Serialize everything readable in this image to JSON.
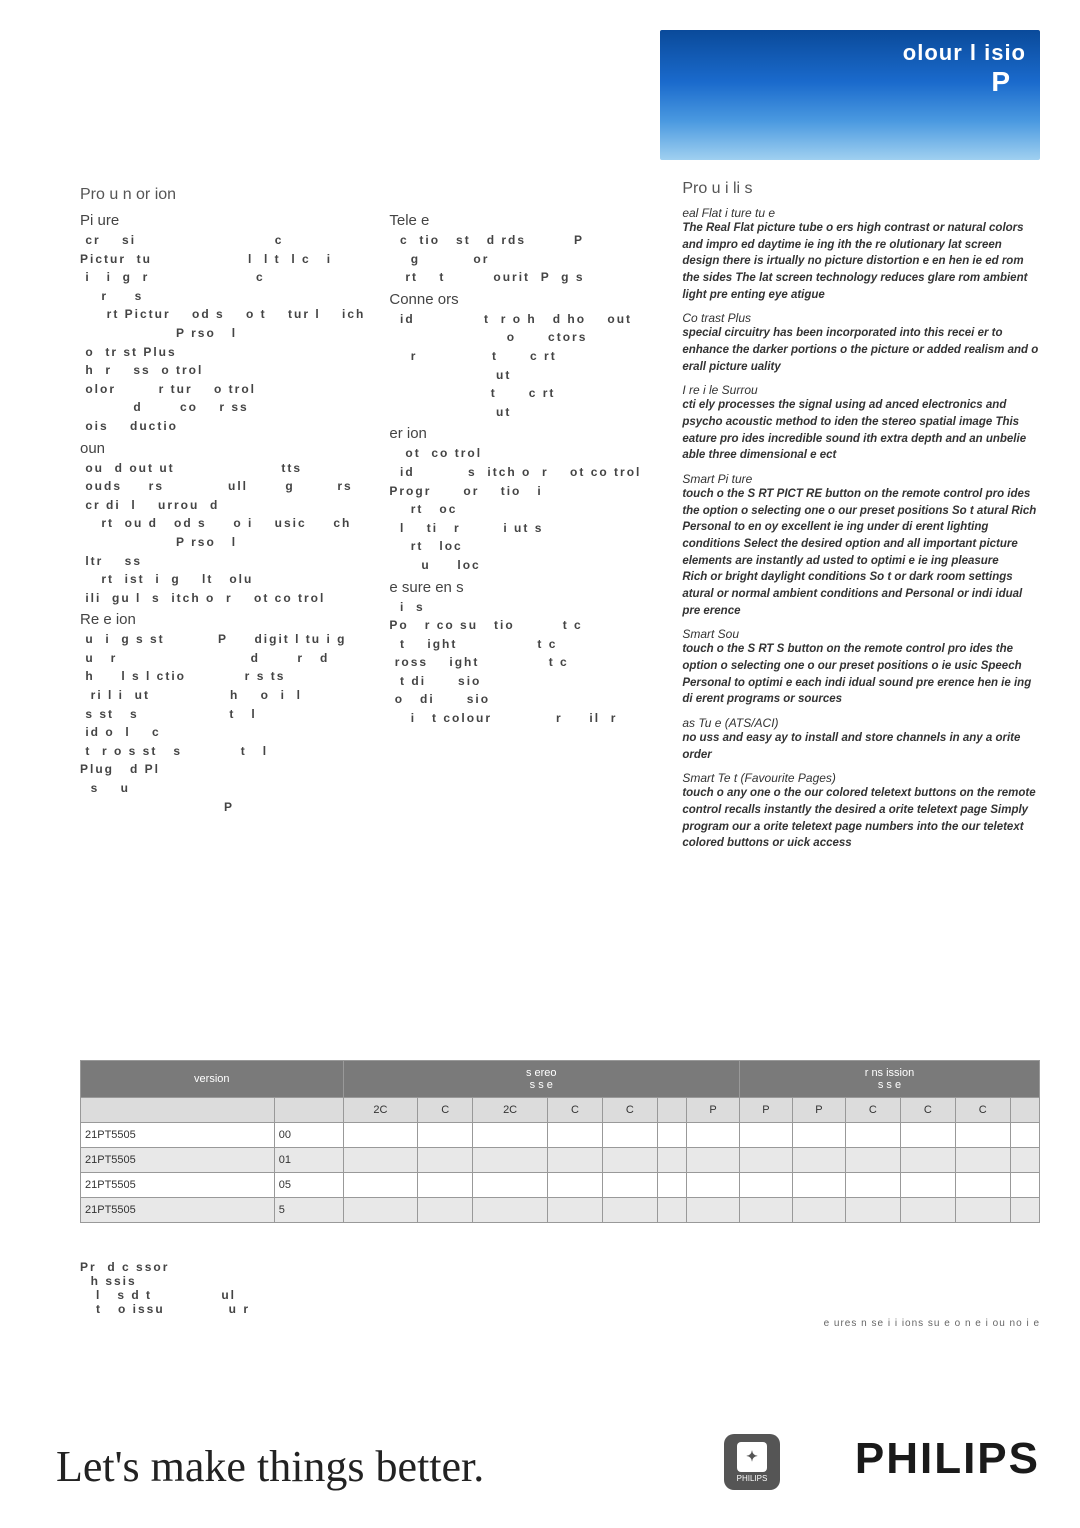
{
  "hero": {
    "title": "olour   l   isio",
    "sub": "P"
  },
  "left": {
    "heading": "Pro u    n or    ion",
    "picture": {
      "heading": "Pi  ure",
      "lines": [
        " cr    si                          c",
        "Pictur  tu                  l  l t  l c   i",
        " i   i  g  r                    c",
        "    r     s",
        "     rt Pictur    od s    o t    tur l    ich",
        "                  P rso   l",
        " o  tr st Plus",
        " h  r    ss  o trol",
        " olor        r tur    o trol",
        "          d       co    r ss",
        " ois    ductio"
      ]
    },
    "teletext": {
      "heading": "Tele e",
      "lines": [
        "  c  tio   st   d rds         P",
        "    g          or",
        "   rt    t         ourit  P  g s"
      ]
    },
    "connectors": {
      "heading": "Conne  ors",
      "lines": [
        "  id             t  r o h   d ho    out",
        "                      o      ctors",
        "    r              t      c rt",
        "                    ut",
        "                   t      c rt",
        "                    ut"
      ]
    },
    "sound": {
      "heading": "oun",
      "lines": [
        " ou  d out ut                    tts",
        " ouds     rs            ull       g        rs",
        " cr di  l    urrou  d",
        "    rt  ou d   od s     o i    usic     ch",
        "                  P rso   l",
        " ltr    ss",
        "    rt  ist  i  g    lt   olu",
        " ili  gu l  s  itch o  r    ot co trol"
      ]
    },
    "version": {
      "heading": "er   ion",
      "lines": [
        "   ot  co trol",
        "  id          s  itch o  r    ot co trol",
        "Progr      or    tio   i",
        "    rt   oc",
        "  l    ti   r        i ut s",
        "    rt   loc",
        "      u     loc"
      ]
    },
    "reception": {
      "heading": "Re e   ion",
      "lines": [
        " u  i  g s st          P     digit l tu i g",
        " u   r                         d       r   d",
        " h     l s l ctio           r s ts",
        "  ri l i  ut               h    o  i  l",
        " s st   s                 t   l",
        " id o  l    c",
        " t  r o s st   s           t   l",
        "Plug   d Pl",
        "  s    u",
        "                           P"
      ]
    },
    "measurements": {
      "heading": "e sure   en s",
      "lines": [
        "  i  s",
        "Po   r co su   tio         t c",
        "  t    ight               t c",
        " ross    ight             t c",
        "  t di      sio",
        "",
        " o   di      sio",
        "",
        "    i   t colour            r     il  r"
      ]
    }
  },
  "highlights": {
    "heading": "Pro u     i   li   s",
    "items": [
      {
        "title": "eal Flat   i ture tu e",
        "body": "The Real Flat picture tube o ers high contrast or natural colors and impro ed daytime ie ing ith the re olutionary lat screen design there is irtually no picture distortion e en hen ie ed rom the sides   The lat screen technology reduces glare rom ambient light pre enting eye atigue"
      },
      {
        "title": "Co trast Plus",
        "body": " special circuitry has been incorporated into this recei er to enhance the darker portions o the picture or added realism and o erall picture uality"
      },
      {
        "title": "I   re i le Surrou",
        "body": " cti ely processes the signal using ad anced electronics and psycho acoustic method to iden the stereo spatial image   This eature pro ides incredible sound ith extra depth and an unbelie able three dimensional e ect"
      },
      {
        "title": "Smart Pi ture",
        "body": " touch o the S    RT PICT RE button on the remote control pro ides the option o selecting one o our preset positions So t    atural Rich Personal to en oy excellent ie ing under di erent lighting conditions   Select the desired option and all important picture elements are instantly ad usted to optimi e ie ing pleasure\n Rich or bright daylight conditions So t or dark room settings    atural or normal ambient conditions and Personal or indi idual pre erence"
      },
      {
        "title": "Smart Sou",
        "body": " touch o the S    RT S           button on the remote control pro ides the option o selecting one o our preset positions    o ie    usic Speech Personal to optimi e each indi idual sound pre erence hen ie ing di erent programs or sources"
      },
      {
        "title": "as  Tu e (ATS/ACI)",
        "body": " no uss and easy   ay to install and store channels in any a orite order"
      },
      {
        "title": "Smart Te t (Favourite Pages)",
        "body": " touch o any one o the our colored teletext buttons on the remote control recalls instantly the desired a orite teletext page Simply program our a orite teletext page numbers into the our teletext colored buttons or uick access"
      }
    ]
  },
  "table": {
    "head1": [
      "version",
      "s ereo\ns s e",
      "r ns ission\ns s e"
    ],
    "head2": [
      "",
      "",
      "2C",
      "C",
      "2C",
      "C",
      "C",
      "",
      "P",
      "P",
      "P",
      "C",
      "C",
      "C",
      ""
    ],
    "rows": [
      [
        "21PT5505",
        "00"
      ],
      [
        "21PT5505",
        "01"
      ],
      [
        "21PT5505",
        "05"
      ],
      [
        "21PT5505",
        "5"
      ]
    ]
  },
  "processor": "Pr  d c ssor\n  h ssis\n   l   s d t             ul\n   t   o issu            u r",
  "disclaimer": "e ures n se i i ions su e   o   n e  i ou no i e",
  "footer": {
    "slogan": "Let's make things better.",
    "badge": "PHILIPS",
    "wordmark": "PHILIPS"
  }
}
